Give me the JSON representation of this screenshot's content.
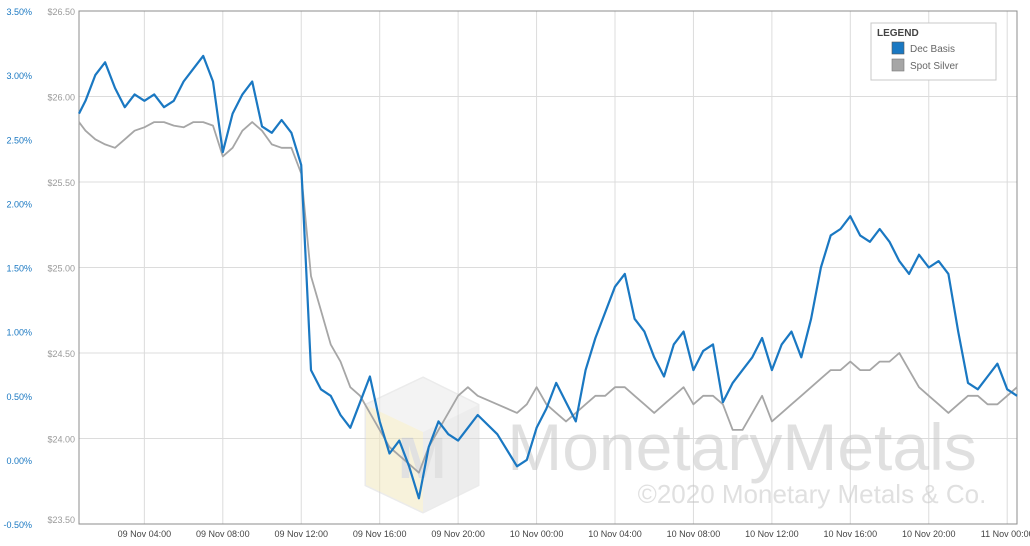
{
  "chart_data": {
    "type": "line",
    "title": "",
    "xlabel": "",
    "ylabel_left": "",
    "ylabel_right": "",
    "grid": true,
    "legend_position": "top-right",
    "legend_title": "LEGEND",
    "x_tick_labels": [
      "09 Nov 04:00",
      "09 Nov 08:00",
      "09 Nov 12:00",
      "09 Nov 16:00",
      "09 Nov 20:00",
      "10 Nov 00:00",
      "10 Nov 04:00",
      "10 Nov 08:00",
      "10 Nov 12:00",
      "10 Nov 16:00",
      "10 Nov 20:00",
      "11 Nov 00:00"
    ],
    "x_range": [
      "09 Nov 00:40",
      "11 Nov 00:30"
    ],
    "y_left": {
      "label": "",
      "range": [
        -0.5,
        3.5
      ],
      "ticks": [
        "3.50%",
        "3.00%",
        "2.50%",
        "2.00%",
        "1.50%",
        "1.00%",
        "0.50%",
        "0.00%",
        "-0.50%"
      ],
      "color": "#1a78c2"
    },
    "y_right_price": {
      "range": [
        23.5,
        26.5
      ],
      "ticks": [
        "$26.50",
        "$26.00",
        "$25.50",
        "$25.00",
        "$24.50",
        "$24.00",
        "$23.50"
      ]
    },
    "series": [
      {
        "name": "Dec Basis",
        "axis": "left",
        "color": "#1a78c2",
        "x": [
          "09 Nov 00:40",
          "09 Nov 01:00",
          "09 Nov 01:30",
          "09 Nov 02:00",
          "09 Nov 02:30",
          "09 Nov 03:00",
          "09 Nov 03:30",
          "09 Nov 04:00",
          "09 Nov 04:30",
          "09 Nov 05:00",
          "09 Nov 05:30",
          "09 Nov 06:00",
          "09 Nov 06:30",
          "09 Nov 07:00",
          "09 Nov 07:30",
          "09 Nov 08:00",
          "09 Nov 08:30",
          "09 Nov 09:00",
          "09 Nov 09:30",
          "09 Nov 10:00",
          "09 Nov 10:30",
          "09 Nov 11:00",
          "09 Nov 11:30",
          "09 Nov 12:00",
          "09 Nov 12:30",
          "09 Nov 13:00",
          "09 Nov 13:30",
          "09 Nov 14:00",
          "09 Nov 14:30",
          "09 Nov 15:00",
          "09 Nov 15:30",
          "09 Nov 16:00",
          "09 Nov 16:30",
          "09 Nov 17:00",
          "09 Nov 17:30",
          "09 Nov 18:00",
          "09 Nov 18:30",
          "09 Nov 19:00",
          "09 Nov 19:30",
          "09 Nov 20:00",
          "09 Nov 20:30",
          "09 Nov 21:00",
          "09 Nov 22:00",
          "09 Nov 23:00",
          "09 Nov 23:30",
          "10 Nov 00:00",
          "10 Nov 00:30",
          "10 Nov 01:00",
          "10 Nov 01:30",
          "10 Nov 02:00",
          "10 Nov 02:30",
          "10 Nov 03:00",
          "10 Nov 03:30",
          "10 Nov 04:00",
          "10 Nov 04:30",
          "10 Nov 05:00",
          "10 Nov 05:30",
          "10 Nov 06:00",
          "10 Nov 06:30",
          "10 Nov 07:00",
          "10 Nov 07:30",
          "10 Nov 08:00",
          "10 Nov 08:30",
          "10 Nov 09:00",
          "10 Nov 09:30",
          "10 Nov 10:00",
          "10 Nov 10:30",
          "10 Nov 11:00",
          "10 Nov 11:30",
          "10 Nov 12:00",
          "10 Nov 12:30",
          "10 Nov 13:00",
          "10 Nov 13:30",
          "10 Nov 14:00",
          "10 Nov 14:30",
          "10 Nov 15:00",
          "10 Nov 15:30",
          "10 Nov 16:00",
          "10 Nov 16:30",
          "10 Nov 17:00",
          "10 Nov 17:30",
          "10 Nov 18:00",
          "10 Nov 18:30",
          "10 Nov 19:00",
          "10 Nov 19:30",
          "10 Nov 20:00",
          "10 Nov 20:30",
          "10 Nov 21:00",
          "10 Nov 21:30",
          "10 Nov 22:00",
          "10 Nov 22:30",
          "10 Nov 23:00",
          "10 Nov 23:30",
          "11 Nov 00:00",
          "11 Nov 00:30"
        ],
        "values": [
          2.7,
          2.8,
          3.0,
          3.1,
          2.9,
          2.75,
          2.85,
          2.8,
          2.85,
          2.75,
          2.8,
          2.95,
          3.05,
          3.15,
          2.95,
          2.4,
          2.7,
          2.85,
          2.95,
          2.6,
          2.55,
          2.65,
          2.55,
          2.3,
          0.7,
          0.55,
          0.5,
          0.35,
          0.25,
          0.45,
          0.65,
          0.3,
          0.05,
          0.15,
          -0.05,
          -0.3,
          0.1,
          0.3,
          0.2,
          0.15,
          0.25,
          0.35,
          0.2,
          -0.05,
          0.0,
          0.25,
          0.4,
          0.6,
          0.45,
          0.3,
          0.7,
          0.95,
          1.15,
          1.35,
          1.45,
          1.1,
          1.0,
          0.8,
          0.65,
          0.9,
          1.0,
          0.7,
          0.85,
          0.9,
          0.45,
          0.6,
          0.7,
          0.8,
          0.95,
          0.7,
          0.9,
          1.0,
          0.8,
          1.1,
          1.5,
          1.75,
          1.8,
          1.9,
          1.75,
          1.7,
          1.8,
          1.7,
          1.55,
          1.45,
          1.6,
          1.5,
          1.55,
          1.45,
          1.0,
          0.6,
          0.55,
          0.65,
          0.75,
          0.55,
          0.5
        ]
      },
      {
        "name": "Spot Silver",
        "axis": "right",
        "color": "#a6a6a6",
        "x": [
          "09 Nov 00:40",
          "09 Nov 01:00",
          "09 Nov 01:30",
          "09 Nov 02:00",
          "09 Nov 02:30",
          "09 Nov 03:00",
          "09 Nov 03:30",
          "09 Nov 04:00",
          "09 Nov 04:30",
          "09 Nov 05:00",
          "09 Nov 05:30",
          "09 Nov 06:00",
          "09 Nov 06:30",
          "09 Nov 07:00",
          "09 Nov 07:30",
          "09 Nov 08:00",
          "09 Nov 08:30",
          "09 Nov 09:00",
          "09 Nov 09:30",
          "09 Nov 10:00",
          "09 Nov 10:30",
          "09 Nov 11:00",
          "09 Nov 11:30",
          "09 Nov 12:00",
          "09 Nov 12:30",
          "09 Nov 13:00",
          "09 Nov 13:30",
          "09 Nov 14:00",
          "09 Nov 14:30",
          "09 Nov 15:00",
          "09 Nov 15:30",
          "09 Nov 16:00",
          "09 Nov 16:30",
          "09 Nov 17:00",
          "09 Nov 17:30",
          "09 Nov 18:00",
          "09 Nov 18:30",
          "09 Nov 19:00",
          "09 Nov 19:30",
          "09 Nov 20:00",
          "09 Nov 20:30",
          "09 Nov 21:00",
          "09 Nov 22:00",
          "09 Nov 23:00",
          "09 Nov 23:30",
          "10 Nov 00:00",
          "10 Nov 00:30",
          "10 Nov 01:00",
          "10 Nov 01:30",
          "10 Nov 02:00",
          "10 Nov 02:30",
          "10 Nov 03:00",
          "10 Nov 03:30",
          "10 Nov 04:00",
          "10 Nov 04:30",
          "10 Nov 05:00",
          "10 Nov 05:30",
          "10 Nov 06:00",
          "10 Nov 06:30",
          "10 Nov 07:00",
          "10 Nov 07:30",
          "10 Nov 08:00",
          "10 Nov 08:30",
          "10 Nov 09:00",
          "10 Nov 09:30",
          "10 Nov 10:00",
          "10 Nov 10:30",
          "10 Nov 11:00",
          "10 Nov 11:30",
          "10 Nov 12:00",
          "10 Nov 12:30",
          "10 Nov 13:00",
          "10 Nov 13:30",
          "10 Nov 14:00",
          "10 Nov 14:30",
          "10 Nov 15:00",
          "10 Nov 15:30",
          "10 Nov 16:00",
          "10 Nov 16:30",
          "10 Nov 17:00",
          "10 Nov 17:30",
          "10 Nov 18:00",
          "10 Nov 18:30",
          "10 Nov 19:00",
          "10 Nov 19:30",
          "10 Nov 20:00",
          "10 Nov 20:30",
          "10 Nov 21:00",
          "10 Nov 21:30",
          "10 Nov 22:00",
          "10 Nov 22:30",
          "10 Nov 23:00",
          "10 Nov 23:30",
          "11 Nov 00:00",
          "11 Nov 00:30"
        ],
        "values": [
          25.85,
          25.8,
          25.75,
          25.72,
          25.7,
          25.75,
          25.8,
          25.82,
          25.85,
          25.85,
          25.83,
          25.82,
          25.85,
          25.85,
          25.83,
          25.65,
          25.7,
          25.8,
          25.85,
          25.8,
          25.72,
          25.7,
          25.7,
          25.55,
          24.95,
          24.75,
          24.55,
          24.45,
          24.3,
          24.25,
          24.15,
          24.05,
          23.95,
          23.9,
          23.85,
          23.8,
          23.95,
          24.05,
          24.15,
          24.25,
          24.3,
          24.25,
          24.2,
          24.15,
          24.2,
          24.3,
          24.2,
          24.15,
          24.1,
          24.15,
          24.2,
          24.25,
          24.25,
          24.3,
          24.3,
          24.25,
          24.2,
          24.15,
          24.2,
          24.25,
          24.3,
          24.2,
          24.25,
          24.25,
          24.2,
          24.05,
          24.05,
          24.15,
          24.25,
          24.1,
          24.15,
          24.2,
          24.25,
          24.3,
          24.35,
          24.4,
          24.4,
          24.45,
          24.4,
          24.4,
          24.45,
          24.45,
          24.5,
          24.4,
          24.3,
          24.25,
          24.2,
          24.15,
          24.2,
          24.25,
          24.25,
          24.2,
          24.2,
          24.25,
          24.3
        ]
      }
    ],
    "watermark": {
      "brand": "MonetaryMetals",
      "copyright": "©2020 Monetary Metals & Co."
    }
  }
}
